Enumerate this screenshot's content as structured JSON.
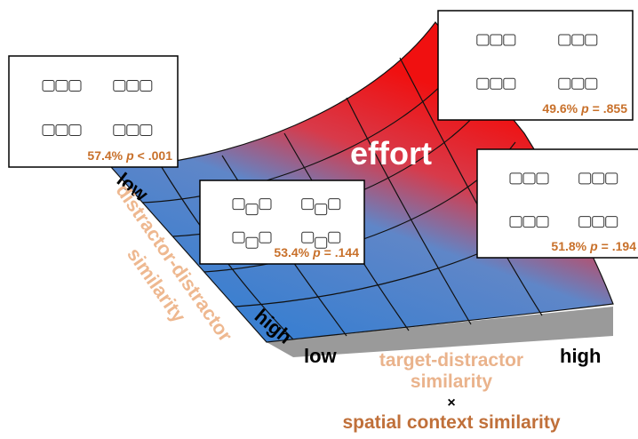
{
  "surface": {
    "label": "effort"
  },
  "axis_dd": {
    "low": "low",
    "high": "high",
    "title_line1": "distractor-distractor",
    "title_line2": "similarity"
  },
  "axis_td": {
    "low": "low",
    "high": "high",
    "title_line1": "target-distractor",
    "title_line2": "similarity",
    "times": "×",
    "title_line3": "spatial context similarity"
  },
  "panels": [
    {
      "percent": "57.4%",
      "p": "p",
      "stat": "< .001"
    },
    {
      "percent": "49.6%",
      "p": "p",
      "stat": "= .855"
    },
    {
      "percent": "53.4%",
      "p": "p",
      "stat": "= .144"
    },
    {
      "percent": "51.8%",
      "p": "p",
      "stat": "= .194"
    }
  ]
}
